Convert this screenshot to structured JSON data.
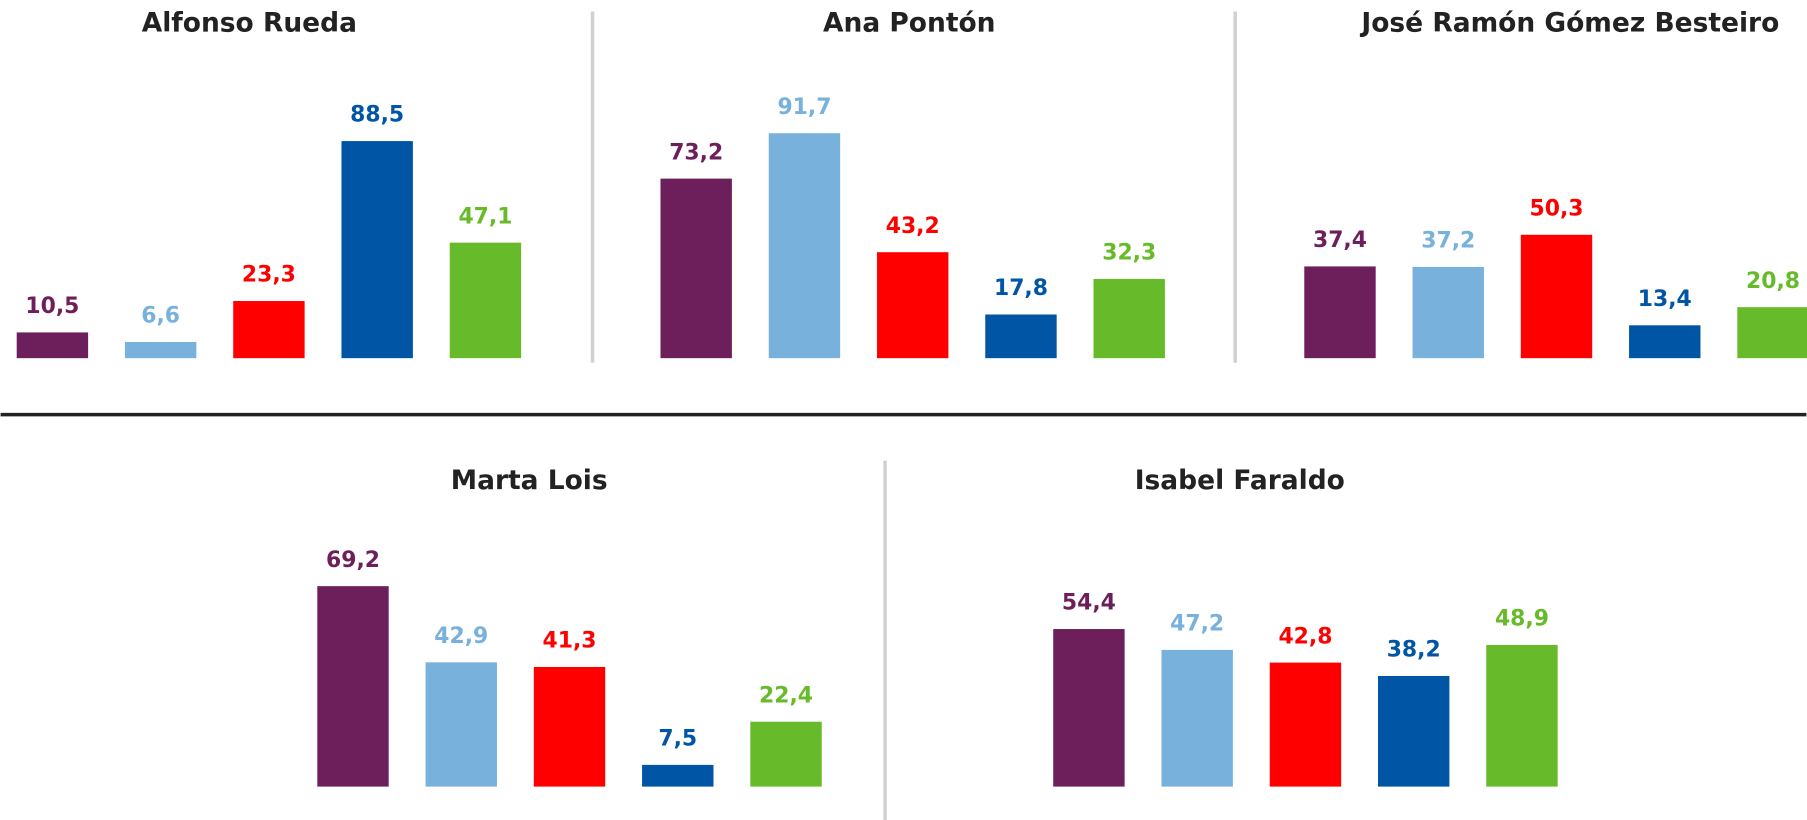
{
  "chart_data": [
    {
      "type": "bar",
      "title": "Alfonso Rueda",
      "categories": [
        null,
        null,
        null,
        null,
        null
      ],
      "values": [
        10.5,
        6.6,
        23.3,
        88.5,
        47.1
      ],
      "value_labels": [
        "10,5",
        "6,6",
        "23,3",
        "88,5",
        "47,1"
      ],
      "colors": [
        "#6d1f5b",
        "#77b1dc",
        "#ff0000",
        "#0055a4",
        "#67bb2a"
      ]
    },
    {
      "type": "bar",
      "title": "Ana Pontón",
      "categories": [
        null,
        null,
        null,
        null,
        null
      ],
      "values": [
        73.2,
        91.7,
        43.2,
        17.8,
        32.3
      ],
      "value_labels": [
        "73,2",
        "91,7",
        "43,2",
        "17,8",
        "32,3"
      ],
      "colors": [
        "#6d1f5b",
        "#77b1dc",
        "#ff0000",
        "#0055a4",
        "#67bb2a"
      ]
    },
    {
      "type": "bar",
      "title": "José Ramón Gómez Besteiro",
      "categories": [
        null,
        null,
        null,
        null,
        null
      ],
      "values": [
        37.4,
        37.2,
        50.3,
        13.4,
        20.8
      ],
      "value_labels": [
        "37,4",
        "37,2",
        "50,3",
        "13,4",
        "20,8"
      ],
      "colors": [
        "#6d1f5b",
        "#77b1dc",
        "#ff0000",
        "#0055a4",
        "#67bb2a"
      ]
    },
    {
      "type": "bar",
      "title": "Marta Lois",
      "categories": [
        null,
        null,
        null,
        null,
        null
      ],
      "values": [
        69.2,
        42.9,
        41.3,
        7.5,
        22.4
      ],
      "value_labels": [
        "69,2",
        "42,9",
        "41,3",
        "7,5",
        "22,4"
      ],
      "colors": [
        "#6d1f5b",
        "#77b1dc",
        "#ff0000",
        "#0055a4",
        "#67bb2a"
      ]
    },
    {
      "type": "bar",
      "title": "Isabel Faraldo",
      "categories": [
        null,
        null,
        null,
        null,
        null
      ],
      "values": [
        54.4,
        47.2,
        42.8,
        38.2,
        48.9
      ],
      "value_labels": [
        "54,4",
        "47,2",
        "42,8",
        "38,2",
        "48,9"
      ],
      "colors": [
        "#6d1f5b",
        "#77b1dc",
        "#ff0000",
        "#0055a4",
        "#67bb2a"
      ]
    }
  ]
}
